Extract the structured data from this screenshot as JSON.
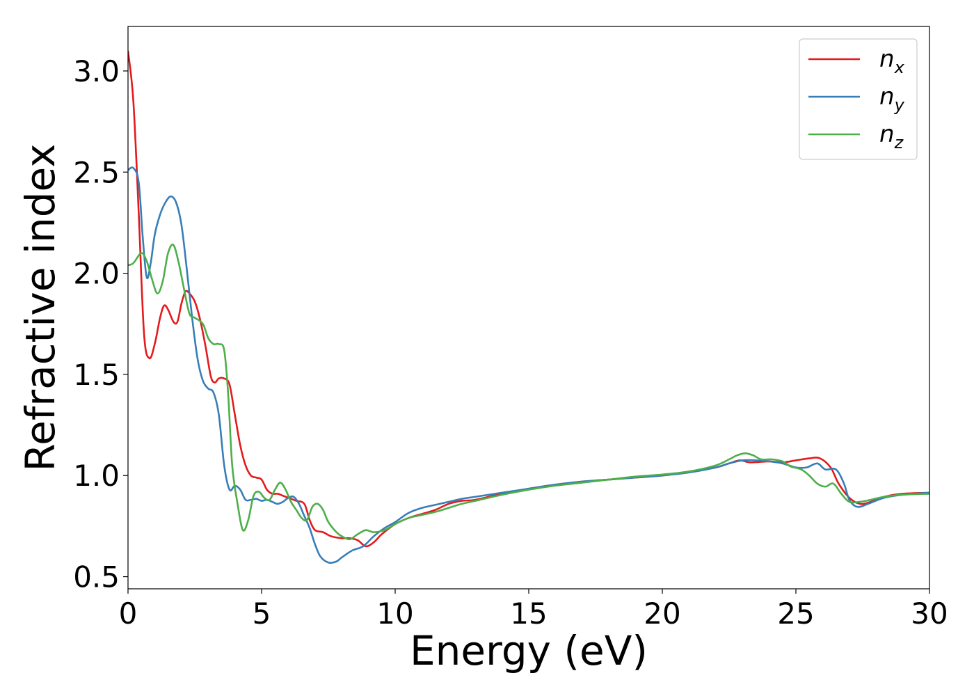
{
  "chart_data": {
    "type": "line",
    "xlabel": "Energy (eV)",
    "ylabel": "Refractive index",
    "xlim": [
      0,
      30
    ],
    "ylim": [
      0.44,
      3.22
    ],
    "xticks": [
      0,
      5,
      10,
      15,
      20,
      25,
      30
    ],
    "xtick_labels": [
      "0",
      "5",
      "10",
      "15",
      "20",
      "25",
      "30"
    ],
    "yticks": [
      0.5,
      1.0,
      1.5,
      2.0,
      2.5,
      3.0
    ],
    "ytick_labels": [
      "0.5",
      "1.0",
      "1.5",
      "2.0",
      "2.5",
      "3.0"
    ],
    "grid": false,
    "legend_position": "top-right",
    "series": [
      {
        "name": "n_x",
        "label_base": "n",
        "label_sub": "x",
        "color": "#e41a1c",
        "points": [
          [
            0,
            3.1
          ],
          [
            0.2,
            2.85
          ],
          [
            0.4,
            2.3
          ],
          [
            0.6,
            1.7
          ],
          [
            0.8,
            1.58
          ],
          [
            1.0,
            1.65
          ],
          [
            1.2,
            1.78
          ],
          [
            1.35,
            1.84
          ],
          [
            1.5,
            1.82
          ],
          [
            1.7,
            1.76
          ],
          [
            1.85,
            1.76
          ],
          [
            2.0,
            1.85
          ],
          [
            2.15,
            1.91
          ],
          [
            2.3,
            1.9
          ],
          [
            2.5,
            1.86
          ],
          [
            2.7,
            1.77
          ],
          [
            2.9,
            1.64
          ],
          [
            3.1,
            1.49
          ],
          [
            3.25,
            1.46
          ],
          [
            3.4,
            1.48
          ],
          [
            3.6,
            1.48
          ],
          [
            3.8,
            1.45
          ],
          [
            4.0,
            1.3
          ],
          [
            4.2,
            1.15
          ],
          [
            4.4,
            1.05
          ],
          [
            4.6,
            1.0
          ],
          [
            4.8,
            0.99
          ],
          [
            5.0,
            0.98
          ],
          [
            5.2,
            0.93
          ],
          [
            5.4,
            0.91
          ],
          [
            5.6,
            0.91
          ],
          [
            5.8,
            0.9
          ],
          [
            6.0,
            0.89
          ],
          [
            6.3,
            0.875
          ],
          [
            6.6,
            0.86
          ],
          [
            6.8,
            0.78
          ],
          [
            7.0,
            0.73
          ],
          [
            7.3,
            0.72
          ],
          [
            7.6,
            0.7
          ],
          [
            8.0,
            0.69
          ],
          [
            8.3,
            0.69
          ],
          [
            8.6,
            0.68
          ],
          [
            8.9,
            0.65
          ],
          [
            9.2,
            0.67
          ],
          [
            9.5,
            0.71
          ],
          [
            10.0,
            0.76
          ],
          [
            10.5,
            0.79
          ],
          [
            11,
            0.81
          ],
          [
            11.5,
            0.83
          ],
          [
            12,
            0.86
          ],
          [
            12.5,
            0.875
          ],
          [
            13,
            0.88
          ],
          [
            14,
            0.91
          ],
          [
            15,
            0.935
          ],
          [
            16,
            0.955
          ],
          [
            17,
            0.97
          ],
          [
            18,
            0.98
          ],
          [
            19,
            0.99
          ],
          [
            20,
            1.0
          ],
          [
            21,
            1.02
          ],
          [
            22,
            1.04
          ],
          [
            22.5,
            1.06
          ],
          [
            22.9,
            1.075
          ],
          [
            23.3,
            1.065
          ],
          [
            24,
            1.07
          ],
          [
            24.5,
            1.065
          ],
          [
            25,
            1.075
          ],
          [
            25.5,
            1.085
          ],
          [
            25.9,
            1.085
          ],
          [
            26.3,
            1.04
          ],
          [
            26.6,
            0.96
          ],
          [
            27.0,
            0.89
          ],
          [
            27.4,
            0.86
          ],
          [
            27.8,
            0.87
          ],
          [
            28.3,
            0.895
          ],
          [
            29,
            0.91
          ],
          [
            30,
            0.915
          ]
        ]
      },
      {
        "name": "n_y",
        "label_base": "n",
        "label_sub": "y",
        "color": "#377eb8",
        "points": [
          [
            0,
            2.51
          ],
          [
            0.2,
            2.52
          ],
          [
            0.4,
            2.45
          ],
          [
            0.55,
            2.18
          ],
          [
            0.7,
            1.98
          ],
          [
            0.85,
            2.05
          ],
          [
            1.0,
            2.19
          ],
          [
            1.2,
            2.29
          ],
          [
            1.4,
            2.35
          ],
          [
            1.6,
            2.38
          ],
          [
            1.8,
            2.35
          ],
          [
            2.0,
            2.24
          ],
          [
            2.2,
            2.02
          ],
          [
            2.4,
            1.78
          ],
          [
            2.6,
            1.58
          ],
          [
            2.8,
            1.47
          ],
          [
            3.0,
            1.43
          ],
          [
            3.2,
            1.41
          ],
          [
            3.4,
            1.3
          ],
          [
            3.6,
            1.05
          ],
          [
            3.8,
            0.93
          ],
          [
            4.0,
            0.95
          ],
          [
            4.2,
            0.93
          ],
          [
            4.4,
            0.88
          ],
          [
            4.6,
            0.88
          ],
          [
            4.8,
            0.885
          ],
          [
            5.0,
            0.875
          ],
          [
            5.2,
            0.88
          ],
          [
            5.4,
            0.87
          ],
          [
            5.6,
            0.86
          ],
          [
            5.8,
            0.87
          ],
          [
            6.0,
            0.89
          ],
          [
            6.2,
            0.895
          ],
          [
            6.4,
            0.86
          ],
          [
            6.6,
            0.8
          ],
          [
            6.8,
            0.74
          ],
          [
            7.0,
            0.66
          ],
          [
            7.2,
            0.6
          ],
          [
            7.5,
            0.57
          ],
          [
            7.8,
            0.575
          ],
          [
            8.0,
            0.595
          ],
          [
            8.4,
            0.63
          ],
          [
            8.8,
            0.65
          ],
          [
            9.2,
            0.7
          ],
          [
            9.6,
            0.74
          ],
          [
            10.0,
            0.77
          ],
          [
            10.5,
            0.815
          ],
          [
            11,
            0.84
          ],
          [
            11.5,
            0.855
          ],
          [
            12,
            0.87
          ],
          [
            12.5,
            0.885
          ],
          [
            13,
            0.895
          ],
          [
            14,
            0.915
          ],
          [
            15,
            0.935
          ],
          [
            16,
            0.955
          ],
          [
            17,
            0.97
          ],
          [
            18,
            0.98
          ],
          [
            19,
            0.99
          ],
          [
            20,
            1.0
          ],
          [
            21,
            1.015
          ],
          [
            22,
            1.04
          ],
          [
            22.5,
            1.06
          ],
          [
            23,
            1.075
          ],
          [
            23.5,
            1.075
          ],
          [
            24,
            1.07
          ],
          [
            24.5,
            1.06
          ],
          [
            25,
            1.04
          ],
          [
            25.4,
            1.04
          ],
          [
            25.8,
            1.06
          ],
          [
            26.1,
            1.03
          ],
          [
            26.5,
            1.03
          ],
          [
            26.8,
            0.96
          ],
          [
            27.0,
            0.88
          ],
          [
            27.3,
            0.845
          ],
          [
            27.7,
            0.86
          ],
          [
            28.3,
            0.89
          ],
          [
            29,
            0.905
          ],
          [
            30,
            0.915
          ]
        ]
      },
      {
        "name": "n_z",
        "label_base": "n",
        "label_sub": "z",
        "color": "#4daf4a",
        "points": [
          [
            0,
            2.04
          ],
          [
            0.2,
            2.05
          ],
          [
            0.5,
            2.1
          ],
          [
            0.7,
            2.06
          ],
          [
            0.9,
            1.97
          ],
          [
            1.1,
            1.9
          ],
          [
            1.3,
            1.96
          ],
          [
            1.5,
            2.1
          ],
          [
            1.7,
            2.14
          ],
          [
            1.9,
            2.05
          ],
          [
            2.1,
            1.92
          ],
          [
            2.3,
            1.8
          ],
          [
            2.5,
            1.78
          ],
          [
            2.8,
            1.75
          ],
          [
            3.0,
            1.68
          ],
          [
            3.2,
            1.65
          ],
          [
            3.4,
            1.65
          ],
          [
            3.6,
            1.62
          ],
          [
            3.75,
            1.4
          ],
          [
            3.9,
            1.05
          ],
          [
            4.1,
            0.86
          ],
          [
            4.3,
            0.73
          ],
          [
            4.5,
            0.78
          ],
          [
            4.7,
            0.9
          ],
          [
            4.9,
            0.92
          ],
          [
            5.1,
            0.89
          ],
          [
            5.3,
            0.88
          ],
          [
            5.5,
            0.93
          ],
          [
            5.7,
            0.965
          ],
          [
            5.9,
            0.93
          ],
          [
            6.1,
            0.87
          ],
          [
            6.3,
            0.83
          ],
          [
            6.5,
            0.79
          ],
          [
            6.7,
            0.78
          ],
          [
            6.9,
            0.845
          ],
          [
            7.1,
            0.86
          ],
          [
            7.3,
            0.83
          ],
          [
            7.5,
            0.77
          ],
          [
            7.8,
            0.72
          ],
          [
            8.0,
            0.7
          ],
          [
            8.3,
            0.685
          ],
          [
            8.6,
            0.71
          ],
          [
            8.9,
            0.73
          ],
          [
            9.2,
            0.72
          ],
          [
            9.6,
            0.73
          ],
          [
            10.0,
            0.76
          ],
          [
            10.5,
            0.79
          ],
          [
            11,
            0.805
          ],
          [
            11.5,
            0.82
          ],
          [
            12,
            0.84
          ],
          [
            12.5,
            0.86
          ],
          [
            13,
            0.875
          ],
          [
            14,
            0.905
          ],
          [
            15,
            0.93
          ],
          [
            16,
            0.95
          ],
          [
            17,
            0.965
          ],
          [
            18,
            0.98
          ],
          [
            19,
            0.995
          ],
          [
            20,
            1.005
          ],
          [
            21,
            1.02
          ],
          [
            22,
            1.05
          ],
          [
            22.5,
            1.08
          ],
          [
            22.8,
            1.1
          ],
          [
            23.1,
            1.11
          ],
          [
            23.4,
            1.1
          ],
          [
            23.7,
            1.08
          ],
          [
            24.1,
            1.08
          ],
          [
            24.5,
            1.07
          ],
          [
            24.8,
            1.045
          ],
          [
            25.2,
            1.03
          ],
          [
            25.5,
            1.0
          ],
          [
            25.8,
            0.96
          ],
          [
            26.1,
            0.945
          ],
          [
            26.4,
            0.96
          ],
          [
            26.7,
            0.91
          ],
          [
            27.0,
            0.87
          ],
          [
            27.4,
            0.87
          ],
          [
            27.8,
            0.88
          ],
          [
            28.3,
            0.895
          ],
          [
            29,
            0.905
          ],
          [
            30,
            0.91
          ]
        ]
      }
    ]
  }
}
